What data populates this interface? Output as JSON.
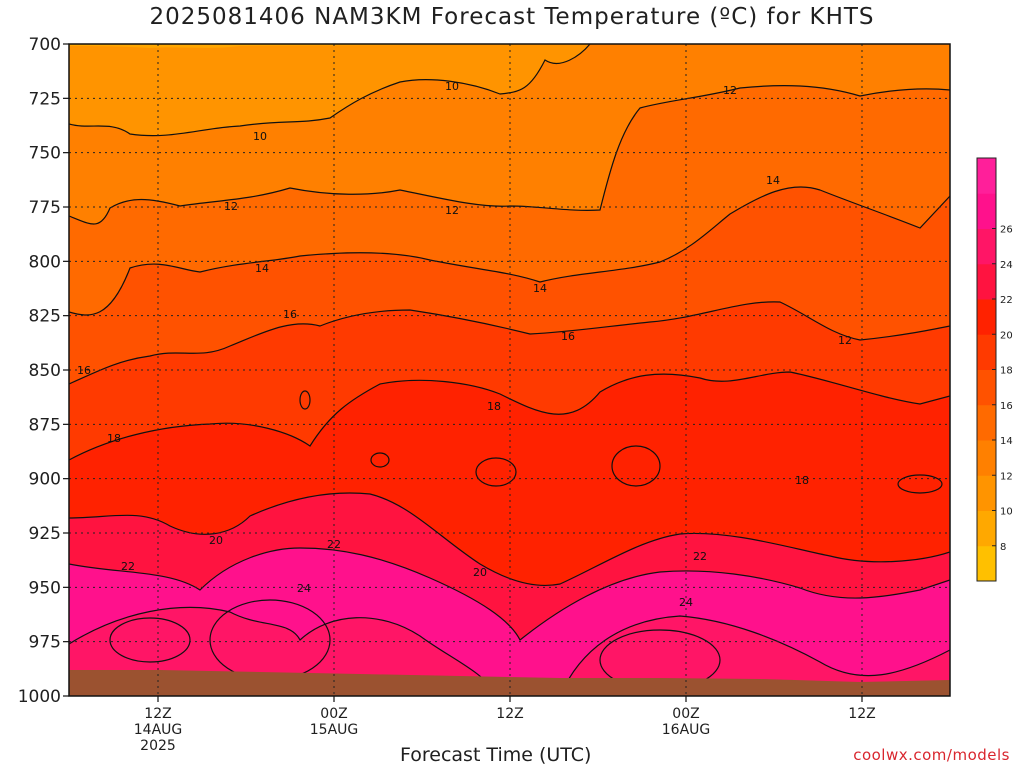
{
  "title": "2025081406 NAM3KM Forecast Temperature (ºC) for KHTS",
  "xlabel": "Forecast Time (UTC)",
  "credit": "coolwx.com/models",
  "chart_data": {
    "type": "contour",
    "title": "2025081406 NAM3KM Forecast Temperature (ºC) for KHTS",
    "xlabel": "Forecast Time (UTC)",
    "ylabel": "",
    "y_axis": {
      "ticks": [
        700,
        725,
        750,
        775,
        800,
        825,
        850,
        875,
        900,
        925,
        950,
        975,
        1000
      ],
      "ylim": [
        700,
        1000
      ],
      "inverted": true
    },
    "x_axis": {
      "ticks": [
        {
          "line1": "12Z",
          "line2": "14AUG",
          "line3": "2025"
        },
        {
          "line1": "00Z",
          "line2": "15AUG",
          "line3": ""
        },
        {
          "line1": "12Z",
          "line2": "",
          "line3": ""
        },
        {
          "line1": "00Z",
          "line2": "16AUG",
          "line3": ""
        },
        {
          "line1": "12Z",
          "line2": "",
          "line3": ""
        }
      ]
    },
    "colorbar": {
      "labels": [
        "8",
        "10",
        "12",
        "14",
        "16",
        "18",
        "20",
        "22",
        "24",
        "26"
      ],
      "colors": [
        "#ffc000",
        "#ffa800",
        "#ff9400",
        "#ff8000",
        "#ff6a00",
        "#ff5200",
        "#ff3a00",
        "#ff2200",
        "#ff1340",
        "#ff1566",
        "#ff118c",
        "#ff1f9a"
      ]
    },
    "contour_labels": [
      {
        "value": "10"
      },
      {
        "value": "10"
      },
      {
        "value": "12"
      },
      {
        "value": "12"
      },
      {
        "value": "12"
      },
      {
        "value": "12"
      },
      {
        "value": "14"
      },
      {
        "value": "14"
      },
      {
        "value": "14"
      },
      {
        "value": "16"
      },
      {
        "value": "16"
      },
      {
        "value": "16"
      },
      {
        "value": "16"
      },
      {
        "value": "18"
      },
      {
        "value": "18"
      },
      {
        "value": "18"
      },
      {
        "value": "20"
      },
      {
        "value": "20"
      },
      {
        "value": "22"
      },
      {
        "value": "22"
      },
      {
        "value": "22"
      },
      {
        "value": "24"
      },
      {
        "value": "24"
      }
    ],
    "grid": true
  }
}
